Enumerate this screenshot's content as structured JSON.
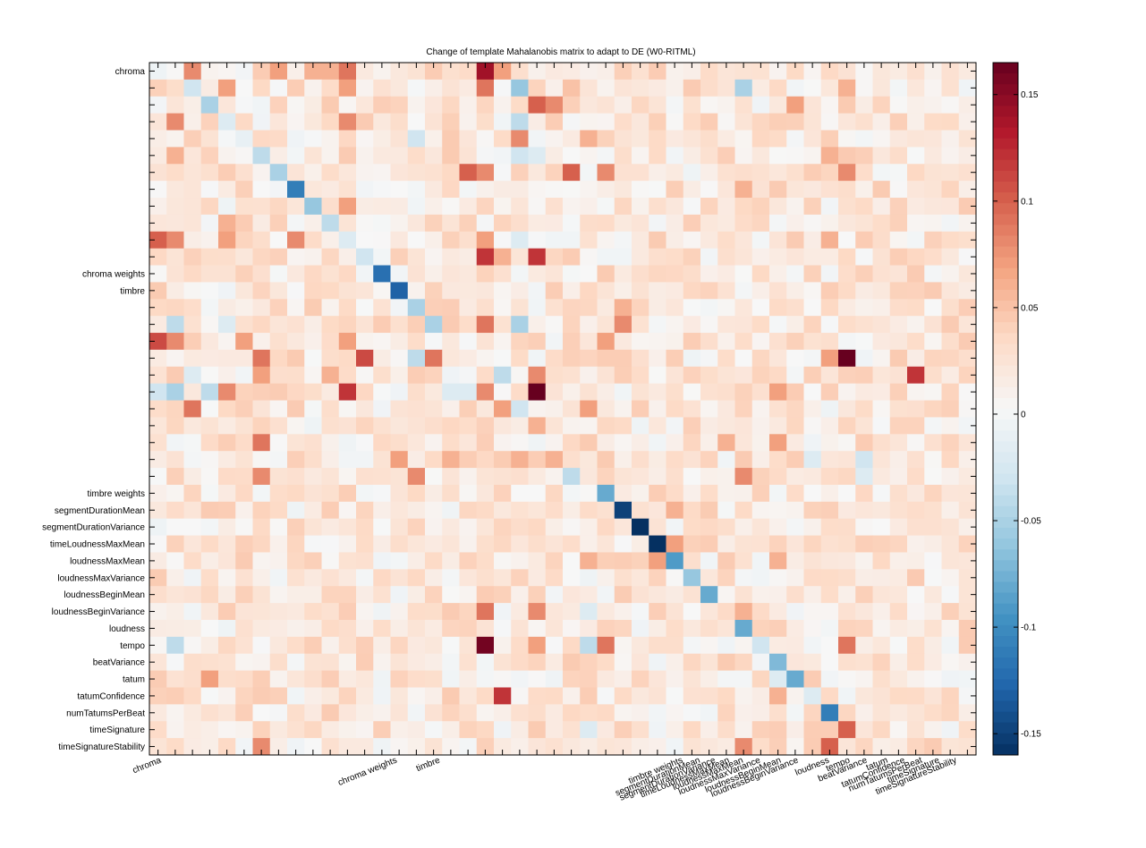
{
  "chart_data": {
    "type": "heatmap",
    "title": "Change of template Mahalanobis matrix to adapt to DE (W0-RITML)",
    "n": 48,
    "y_tick_labels": [
      {
        "index": 0,
        "label": "chroma"
      },
      {
        "index": 12,
        "label": "chroma weights"
      },
      {
        "index": 13,
        "label": "timbre"
      },
      {
        "index": 25,
        "label": "timbre weights"
      },
      {
        "index": 26,
        "label": "segmentDurationMean"
      },
      {
        "index": 27,
        "label": "segmentDurationVariance"
      },
      {
        "index": 28,
        "label": "timeLoudnessMaxMean"
      },
      {
        "index": 29,
        "label": "loudnessMaxMean"
      },
      {
        "index": 30,
        "label": "loudnessMaxVariance"
      },
      {
        "index": 31,
        "label": "loudnessBeginMean"
      },
      {
        "index": 32,
        "label": "loudnessBeginVariance"
      },
      {
        "index": 33,
        "label": "loudness"
      },
      {
        "index": 34,
        "label": "tempo"
      },
      {
        "index": 35,
        "label": "beatVariance"
      },
      {
        "index": 36,
        "label": "tatum"
      },
      {
        "index": 37,
        "label": "tatumConfidence"
      },
      {
        "index": 38,
        "label": "numTatumsPerBeat"
      },
      {
        "index": 39,
        "label": "timeSignature"
      },
      {
        "index": 40,
        "label": "timeSignatureStability"
      }
    ],
    "x_tick_labels": [
      {
        "index": 0,
        "label": "chroma"
      },
      {
        "index": 12,
        "label": "chroma weights"
      },
      {
        "index": 13,
        "label": "timbre"
      },
      {
        "index": 25,
        "label": "timbre weights"
      },
      {
        "index": 26,
        "label": "segmentDurationMean"
      },
      {
        "index": 27,
        "label": "segmentDurationVariance"
      },
      {
        "index": 28,
        "label": "timeLoudnessMaxMean"
      },
      {
        "index": 29,
        "label": "loudnessMaxMean"
      },
      {
        "index": 30,
        "label": "loudnessMaxVariance"
      },
      {
        "index": 31,
        "label": "loudnessBeginMean"
      },
      {
        "index": 32,
        "label": "loudnessBeginVariance"
      },
      {
        "index": 33,
        "label": "loudness"
      },
      {
        "index": 34,
        "label": "tempo"
      },
      {
        "index": 35,
        "label": "beatVariance"
      },
      {
        "index": 36,
        "label": "tatum"
      },
      {
        "index": 37,
        "label": "tatumConfidence"
      },
      {
        "index": 38,
        "label": "numTatumsPerBeat"
      },
      {
        "index": 39,
        "label": "timeSignature"
      },
      {
        "index": 40,
        "label": "timeSignatureStability"
      }
    ],
    "colorbar": {
      "range": [
        -0.16,
        0.165
      ],
      "ticks": [
        0.15,
        0.1,
        0.05,
        0,
        -0.05,
        -0.1,
        -0.15
      ],
      "tick_labels": [
        "0.15",
        "0.1",
        "0.05",
        "0",
        "-0.05",
        "-0.1",
        "-0.15"
      ]
    },
    "colormap": [
      "#053061",
      "#2166ac",
      "#4393c3",
      "#92c5de",
      "#d1e5f0",
      "#f7f7f7",
      "#fddbc7",
      "#f4a582",
      "#d6604d",
      "#b2182b",
      "#67001f"
    ],
    "baseline_value": 0.02,
    "diagonal": [
      0.03,
      -0.04,
      -0.05,
      -0.02,
      -0.01,
      -0.04,
      -0.05,
      -0.11,
      -0.06,
      -0.04,
      -0.02,
      -0.03,
      -0.12,
      -0.13,
      -0.05,
      -0.05,
      -0.01,
      0.0,
      -0.02,
      -0.01,
      -0.04,
      0.06,
      0.0,
      0.01,
      0.02,
      -0.05,
      -0.09,
      -0.16,
      -0.16,
      -0.16,
      -0.11,
      -0.06,
      -0.08,
      0.0,
      -0.03,
      -0.07,
      -0.04,
      -0.09,
      -0.07,
      -0.04,
      -0.12,
      0.05,
      0.09
    ],
    "cells": [
      [
        0,
        2,
        0.08
      ],
      [
        0,
        11,
        0.09
      ],
      [
        0,
        19,
        0.14
      ],
      [
        0,
        20,
        0.07
      ],
      [
        0,
        7,
        0.07
      ],
      [
        0,
        9,
        0.06
      ],
      [
        0,
        10,
        0.06
      ],
      [
        1,
        2,
        -0.03
      ],
      [
        1,
        4,
        0.07
      ],
      [
        1,
        11,
        0.07
      ],
      [
        1,
        19,
        0.09
      ],
      [
        1,
        21,
        -0.06
      ],
      [
        1,
        24,
        0.05
      ],
      [
        1,
        34,
        -0.05
      ],
      [
        1,
        40,
        0.06
      ],
      [
        2,
        3,
        -0.05
      ],
      [
        2,
        22,
        0.1
      ],
      [
        2,
        23,
        0.08
      ],
      [
        2,
        37,
        0.07
      ],
      [
        3,
        1,
        0.08
      ],
      [
        3,
        4,
        -0.02
      ],
      [
        3,
        11,
        0.08
      ],
      [
        3,
        21,
        -0.04
      ],
      [
        4,
        5,
        -0.01
      ],
      [
        4,
        15,
        -0.03
      ],
      [
        4,
        21,
        0.08
      ],
      [
        4,
        25,
        0.06
      ],
      [
        5,
        1,
        0.06
      ],
      [
        5,
        6,
        -0.04
      ],
      [
        5,
        21,
        -0.03
      ],
      [
        5,
        22,
        -0.02
      ],
      [
        5,
        39,
        0.06
      ],
      [
        6,
        7,
        -0.05
      ],
      [
        6,
        18,
        0.1
      ],
      [
        6,
        19,
        0.08
      ],
      [
        6,
        24,
        0.1
      ],
      [
        6,
        26,
        0.08
      ],
      [
        6,
        40,
        0.08
      ],
      [
        7,
        8,
        -0.11
      ],
      [
        7,
        34,
        0.06
      ],
      [
        8,
        9,
        -0.06
      ],
      [
        8,
        11,
        0.07
      ],
      [
        9,
        10,
        -0.04
      ],
      [
        9,
        4,
        0.06
      ],
      [
        10,
        0,
        0.1
      ],
      [
        10,
        1,
        0.08
      ],
      [
        10,
        4,
        0.07
      ],
      [
        10,
        8,
        0.08
      ],
      [
        10,
        11,
        -0.02
      ],
      [
        10,
        19,
        0.07
      ],
      [
        10,
        21,
        -0.02
      ],
      [
        10,
        39,
        0.06
      ],
      [
        11,
        12,
        -0.03
      ],
      [
        11,
        19,
        0.12
      ],
      [
        11,
        20,
        0.06
      ],
      [
        11,
        22,
        0.12
      ],
      [
        12,
        13,
        -0.12
      ],
      [
        13,
        14,
        -0.13
      ],
      [
        14,
        15,
        -0.05
      ],
      [
        14,
        27,
        0.06
      ],
      [
        15,
        1,
        -0.04
      ],
      [
        15,
        4,
        -0.02
      ],
      [
        15,
        16,
        -0.05
      ],
      [
        15,
        19,
        0.09
      ],
      [
        15,
        21,
        -0.05
      ],
      [
        15,
        27,
        0.08
      ],
      [
        16,
        0,
        0.11
      ],
      [
        16,
        1,
        0.08
      ],
      [
        16,
        5,
        0.07
      ],
      [
        16,
        11,
        0.07
      ],
      [
        16,
        26,
        0.07
      ],
      [
        17,
        6,
        0.09
      ],
      [
        17,
        12,
        0.11
      ],
      [
        17,
        15,
        -0.04
      ],
      [
        17,
        16,
        0.09
      ],
      [
        17,
        40,
        0.17
      ],
      [
        17,
        39,
        0.07
      ],
      [
        18,
        2,
        -0.02
      ],
      [
        18,
        6,
        0.07
      ],
      [
        18,
        10,
        0.06
      ],
      [
        18,
        20,
        -0.04
      ],
      [
        18,
        22,
        0.08
      ],
      [
        18,
        44,
        0.12
      ],
      [
        19,
        0,
        -0.03
      ],
      [
        19,
        1,
        -0.05
      ],
      [
        19,
        3,
        -0.04
      ],
      [
        19,
        4,
        0.08
      ],
      [
        19,
        11,
        0.12
      ],
      [
        19,
        17,
        -0.02
      ],
      [
        19,
        18,
        -0.02
      ],
      [
        19,
        19,
        0.08
      ],
      [
        19,
        22,
        0.17
      ],
      [
        19,
        36,
        0.07
      ],
      [
        20,
        2,
        0.09
      ],
      [
        20,
        20,
        0.07
      ],
      [
        20,
        21,
        -0.03
      ],
      [
        20,
        25,
        0.07
      ],
      [
        21,
        22,
        0.06
      ],
      [
        22,
        6,
        0.09
      ],
      [
        22,
        33,
        0.06
      ],
      [
        22,
        36,
        0.07
      ],
      [
        23,
        14,
        0.07
      ],
      [
        23,
        17,
        0.06
      ],
      [
        23,
        21,
        0.06
      ],
      [
        23,
        23,
        0.06
      ],
      [
        23,
        38,
        -0.02
      ],
      [
        23,
        41,
        -0.03
      ],
      [
        24,
        6,
        0.08
      ],
      [
        24,
        15,
        0.08
      ],
      [
        24,
        24,
        -0.04
      ],
      [
        24,
        34,
        0.08
      ],
      [
        24,
        41,
        -0.02
      ],
      [
        25,
        26,
        -0.08
      ],
      [
        26,
        27,
        -0.15
      ],
      [
        26,
        30,
        0.06
      ],
      [
        27,
        28,
        -0.16
      ],
      [
        28,
        29,
        -0.16
      ],
      [
        28,
        30,
        0.07
      ],
      [
        29,
        30,
        -0.09
      ],
      [
        29,
        25,
        0.06
      ],
      [
        29,
        29,
        0.07
      ],
      [
        29,
        36,
        0.06
      ],
      [
        30,
        31,
        -0.06
      ],
      [
        31,
        32,
        -0.08
      ],
      [
        32,
        19,
        0.09
      ],
      [
        32,
        22,
        0.08
      ],
      [
        32,
        25,
        -0.02
      ],
      [
        32,
        34,
        0.06
      ],
      [
        33,
        34,
        -0.08
      ],
      [
        33,
        35,
        0.04
      ],
      [
        34,
        1,
        -0.04
      ],
      [
        34,
        19,
        0.16
      ],
      [
        34,
        22,
        0.07
      ],
      [
        34,
        25,
        -0.04
      ],
      [
        34,
        26,
        0.09
      ],
      [
        34,
        35,
        -0.03
      ],
      [
        34,
        40,
        0.09
      ],
      [
        35,
        36,
        -0.07
      ],
      [
        36,
        37,
        -0.08
      ],
      [
        36,
        3,
        0.07
      ],
      [
        36,
        36,
        -0.02
      ],
      [
        37,
        20,
        0.12
      ],
      [
        37,
        36,
        0.06
      ],
      [
        37,
        38,
        -0.02
      ],
      [
        38,
        39,
        -0.11
      ],
      [
        39,
        40,
        0.1
      ],
      [
        39,
        25,
        -0.02
      ],
      [
        40,
        34,
        0.08
      ],
      [
        40,
        6,
        0.08
      ],
      [
        40,
        39,
        0.1
      ]
    ]
  }
}
